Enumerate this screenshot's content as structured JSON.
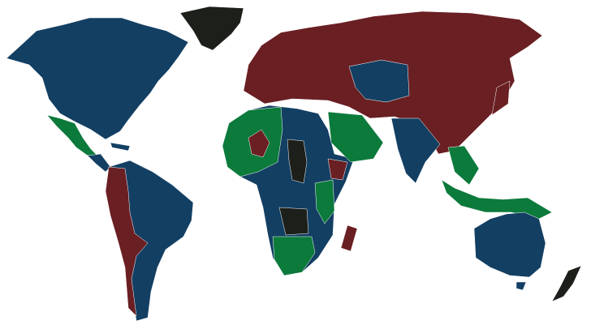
{
  "map": {
    "type": "world-choropleth",
    "colors": {
      "blue": "#133f63",
      "red": "#6a1f23",
      "green": "#0b7a3b",
      "black": "#1c1f1a"
    }
  }
}
